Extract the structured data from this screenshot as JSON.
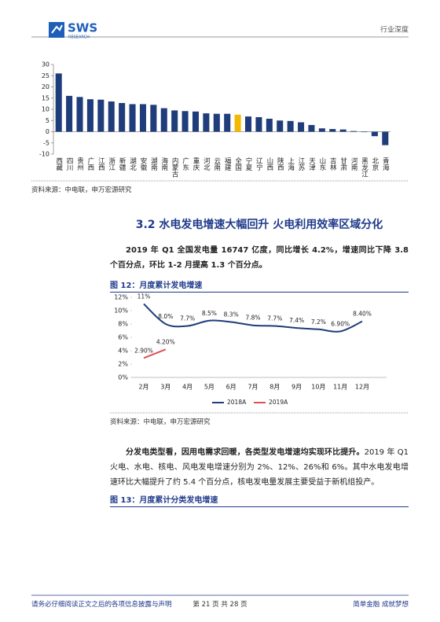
{
  "header": {
    "logo": "SWS",
    "logo_sub": "RESEARCH",
    "category": "行业深度"
  },
  "figure_11": {
    "chart_data": {
      "type": "bar",
      "categories": [
        "西藏",
        "四川",
        "贵州",
        "广西",
        "江西",
        "浙江",
        "新疆",
        "湖北",
        "安徽",
        "湖南",
        "海南",
        "内蒙古",
        "广东",
        "重庆",
        "河北",
        "云南",
        "福建",
        "全国",
        "宁夏",
        "辽宁",
        "山西",
        "陕西",
        "上海",
        "江苏",
        "天津",
        "山东",
        "吉林",
        "甘肃",
        "河南",
        "黑龙江",
        "北京",
        "青海"
      ],
      "values": [
        26,
        16,
        15.5,
        14.5,
        14.3,
        13.5,
        12.8,
        12.3,
        12.3,
        12,
        10.5,
        9.5,
        9.2,
        9,
        8.2,
        8,
        8,
        7.6,
        6.8,
        6.5,
        5.8,
        5,
        4.8,
        4.2,
        3,
        1.5,
        1.2,
        1,
        0.3,
        -0.2,
        -2,
        -6
      ],
      "colors": [
        "#1f3d7a",
        "#1f3d7a",
        "#1f3d7a",
        "#1f3d7a",
        "#1f3d7a",
        "#1f3d7a",
        "#1f3d7a",
        "#1f3d7a",
        "#1f3d7a",
        "#1f3d7a",
        "#1f3d7a",
        "#1f3d7a",
        "#1f3d7a",
        "#1f3d7a",
        "#1f3d7a",
        "#1f3d7a",
        "#1f3d7a",
        "#f5b800",
        "#1f3d7a",
        "#1f3d7a",
        "#1f3d7a",
        "#1f3d7a",
        "#1f3d7a",
        "#1f3d7a",
        "#1f3d7a",
        "#1f3d7a",
        "#1f3d7a",
        "#1f3d7a",
        "#1f3d7a",
        "#1f3d7a",
        "#1f3d7a",
        "#1f3d7a"
      ],
      "ylim": [
        -10,
        30
      ],
      "yticks": [
        -10,
        -5,
        0,
        5,
        10,
        15,
        20,
        25,
        30
      ],
      "grid": false
    },
    "source": "资料来源：中电联，申万宏源研究"
  },
  "section": {
    "heading": "3.2 水电发电增速大幅回升  火电利用效率区域分化"
  },
  "paragraphs": [
    {
      "text": "2019 年 Q1 全国发电量 16747 亿度，同比增长 4.2%，增速同比下降 3.8 个百分点，环比 1-2 月提高 1.3 个百分点。"
    },
    {
      "bold": "分发电类型看，因用电需求回暖，各类型发电增速均实现环比提升。",
      "text": "2019 年 Q1 火电、水电、核电、风电发电增速分别为 2%、12%、26%和 6%。其中水电发电增速环比大幅提升了约 5.4 个百分点，核电发电量发展主要受益于新机组投产。"
    }
  ],
  "figure_12": {
    "caption": "图 12：月度累计发电增速",
    "chart_data": {
      "type": "line",
      "categories": [
        "2月",
        "3月",
        "4月",
        "5月",
        "6月",
        "7月",
        "8月",
        "9月",
        "10月",
        "11月",
        "12月"
      ],
      "series": [
        {
          "name": "2018A",
          "color": "#1f3d7a",
          "values": [
            11,
            8.0,
            7.7,
            8.5,
            8.3,
            7.8,
            7.7,
            7.4,
            7.2,
            6.9,
            8.4
          ],
          "value_labels": [
            "11%",
            "8.0%",
            "7.7%",
            "8.5%",
            "8.3%",
            "7.8%",
            "7.7%",
            "7.4%",
            "7.2%",
            "6.90%",
            "8.40%"
          ]
        },
        {
          "name": "2019A",
          "color": "#e05050",
          "values": [
            2.9,
            4.2,
            null,
            null,
            null,
            null,
            null,
            null,
            null,
            null,
            null
          ],
          "value_labels": [
            "2.90%",
            "4.20%",
            null,
            null,
            null,
            null,
            null,
            null,
            null,
            null,
            null
          ]
        }
      ],
      "ylim": [
        0,
        12
      ],
      "yticks": [
        {
          "value": 0,
          "label": "0%"
        },
        {
          "value": 2,
          "label": "2%"
        },
        {
          "value": 4,
          "label": "4%"
        },
        {
          "value": 6,
          "label": "6%"
        },
        {
          "value": 8,
          "label": "8%"
        },
        {
          "value": 10,
          "label": "10%"
        },
        {
          "value": 12,
          "label": "12%"
        }
      ],
      "legend": "bottom",
      "grid": false
    },
    "source": "资料来源：中电联，申万宏源研究"
  },
  "figure_13": {
    "caption": "图 13：月度累计分类发电增速"
  },
  "footer": {
    "left": "请务必仔细阅读正文之后的各项信息披露与声明",
    "center": "第 21 页 共 28 页",
    "right": "简单金融 成就梦想"
  }
}
